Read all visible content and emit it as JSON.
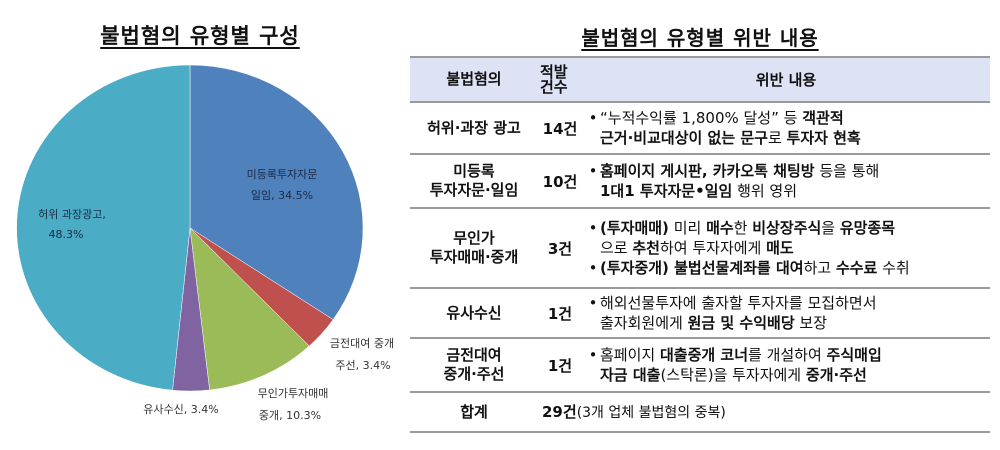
{
  "left_title": "불법혐의 유형별 구성",
  "right_title": "불법혐의 유형별 위반 내용",
  "chart_data": {
    "type": "pie",
    "title": "불법혐의 유형별 구성",
    "categories": [
      "미등록투자자문 일임",
      "금전대여 중개 주선",
      "무인가투자매매 중개",
      "유사수신",
      "허위 과장광고"
    ],
    "values": [
      34.5,
      3.4,
      10.3,
      3.4,
      48.3
    ],
    "unit": "%",
    "colors": [
      "#4f81bd",
      "#c0504d",
      "#9bbb59",
      "#8064a2",
      "#4bacc6"
    ],
    "start_angle": "12 o'clock",
    "direction": "clockwise",
    "labels": [
      {
        "line1": "미등록투자자문",
        "line2": "일임, 34.5%"
      },
      {
        "line1": "금전대여 중개",
        "line2": "주선, 3.4%"
      },
      {
        "line1": "무인가투자매매",
        "line2": "중개, 10.3%"
      },
      {
        "line1": "유사수신, 3.4%",
        "line2": ""
      },
      {
        "line1": "허위 과장광고,",
        "line2": "48.3%"
      }
    ]
  },
  "table": {
    "header": {
      "type": "불법혐의",
      "count_line1": "적발",
      "count_line2": "건수",
      "detail": "위반 내용"
    },
    "rows": [
      {
        "type_line1": "허위·과장 광고",
        "type_line2": "",
        "count": "14건",
        "bullets": [
          {
            "line1": [
              {
                "t": "“누적수익률 1,800% 달성” 등 ",
                "b": false
              },
              {
                "t": "객관적",
                "b": true
              }
            ],
            "line2": [
              {
                "t": "근거·비교대상이 없는 문구",
                "b": true
              },
              {
                "t": "로 ",
                "b": false
              },
              {
                "t": "투자자 현혹",
                "b": true
              }
            ]
          }
        ]
      },
      {
        "type_line1": "미등록",
        "type_line2": "투자자문·일임",
        "count": "10건",
        "bullets": [
          {
            "line1": [
              {
                "t": "홈페이지 게시판, 카카오톡 채팅방",
                "b": true
              },
              {
                "t": " 등을 통해",
                "b": false
              }
            ],
            "line2": [
              {
                "t": "1대1 투자자문•일임",
                "b": true
              },
              {
                "t": " 행위 영위",
                "b": false
              }
            ]
          }
        ]
      },
      {
        "type_line1": "무인가",
        "type_line2": "투자매매·중개",
        "count": "3건",
        "bullets": [
          {
            "line1": [
              {
                "t": "(투자매매)",
                "b": true
              },
              {
                "t": " 미리 ",
                "b": false
              },
              {
                "t": "매수",
                "b": true
              },
              {
                "t": "한 ",
                "b": false
              },
              {
                "t": "비상장주식",
                "b": true
              },
              {
                "t": "을 ",
                "b": false
              },
              {
                "t": "유망종목",
                "b": true
              }
            ],
            "line2": [
              {
                "t": "으로 ",
                "b": false
              },
              {
                "t": "추천",
                "b": true
              },
              {
                "t": "하여 투자자에게 ",
                "b": false
              },
              {
                "t": "매도",
                "b": true
              }
            ]
          },
          {
            "line1": [
              {
                "t": "(투자중개) 불법선물계좌를 대여",
                "b": true
              },
              {
                "t": "하고 ",
                "b": false
              },
              {
                "t": "수수료",
                "b": true
              },
              {
                "t": " 수취",
                "b": false
              }
            ],
            "line2": []
          }
        ]
      },
      {
        "type_line1": "유사수신",
        "type_line2": "",
        "count": "1건",
        "bullets": [
          {
            "line1": [
              {
                "t": "해외선물투자에 출자할 투자자를 모집하면서",
                "b": false
              }
            ],
            "line2": [
              {
                "t": "출자회원에게 ",
                "b": false
              },
              {
                "t": "원금 및 수익배당",
                "b": true
              },
              {
                "t": " 보장",
                "b": false
              }
            ]
          }
        ]
      },
      {
        "type_line1": "금전대여",
        "type_line2": "중개·주선",
        "count": "1건",
        "bullets": [
          {
            "line1": [
              {
                "t": "홈페이지 ",
                "b": false
              },
              {
                "t": "대출중개 코너",
                "b": true
              },
              {
                "t": "를 개설하여 ",
                "b": false
              },
              {
                "t": "주식매입",
                "b": true
              }
            ],
            "line2": [
              {
                "t": "자금 대출",
                "b": true
              },
              {
                "t": "(스탁론)을 투자자에게 ",
                "b": false
              },
              {
                "t": "중개·주선",
                "b": true
              }
            ]
          }
        ]
      }
    ],
    "total": {
      "label": "합계",
      "count": "29건",
      "note": "(3개 업체 불법혐의 중복)"
    }
  }
}
